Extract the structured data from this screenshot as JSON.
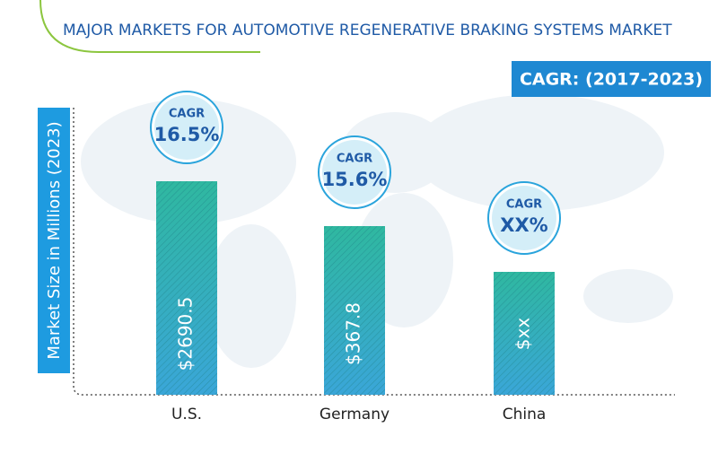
{
  "header": {
    "title": "MAJOR MARKETS FOR AUTOMOTIVE REGENERATIVE BRAKING SYSTEMS MARKET",
    "cagr_period": "CAGR: (2017-2023)"
  },
  "y_axis_label": "Market Size in Millions (2023)",
  "markets": [
    {
      "name": "U.S.",
      "value_label": "$2690.5",
      "cagr_label": "CAGR",
      "cagr": "16.5%"
    },
    {
      "name": "Germany",
      "value_label": "$367.8",
      "cagr_label": "CAGR",
      "cagr": "15.6%"
    },
    {
      "name": "China",
      "value_label": "$xx",
      "cagr_label": "CAGR",
      "cagr": "XX%"
    }
  ]
}
